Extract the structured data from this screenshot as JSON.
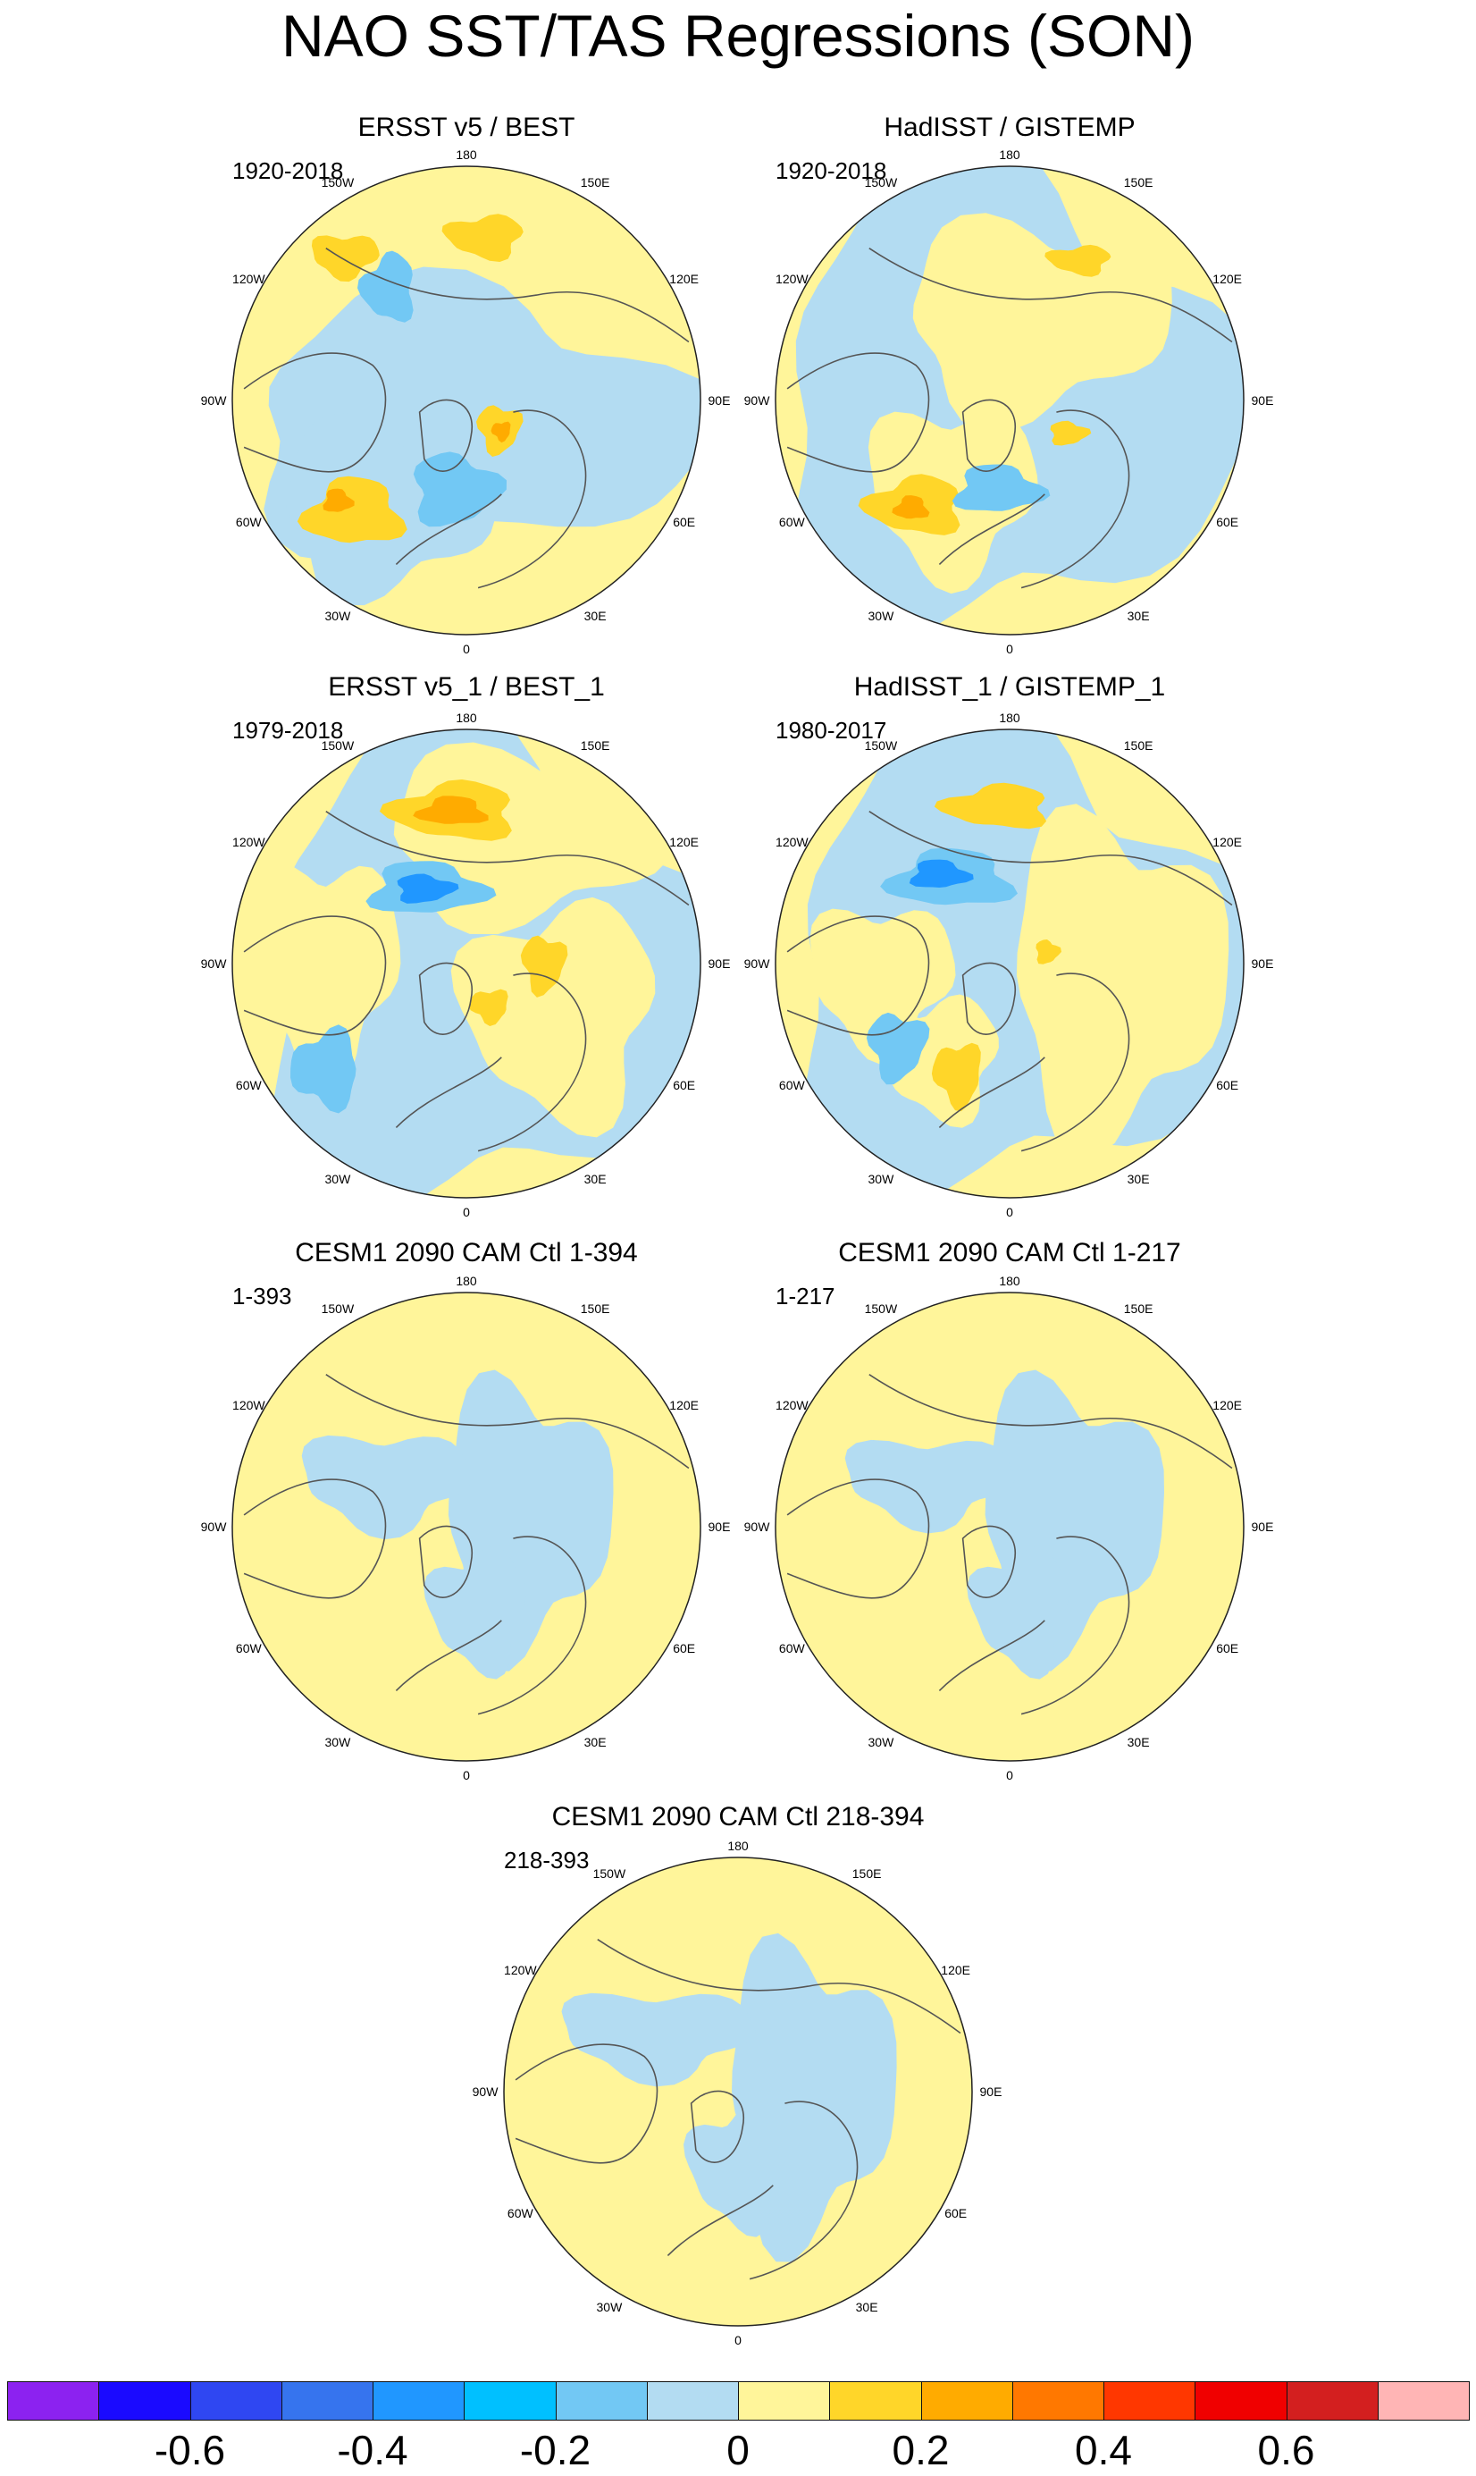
{
  "title": "NAO SST/TAS Regressions (SON)",
  "lon_labels": {
    "top": "180",
    "top_left": "150W",
    "top_right": "150E",
    "upper_left": "120W",
    "upper_right": "120E",
    "left": "90W",
    "right": "90E",
    "lower_left": "60W",
    "lower_right": "60E",
    "bottom_left": "30W",
    "bottom_right": "30E",
    "bottom": "0"
  },
  "panels": [
    {
      "id": "p1",
      "title": "ERSST v5 / BEST",
      "period": "1920-2018"
    },
    {
      "id": "p2",
      "title": "HadISST / GISTEMP",
      "period": "1920-2018"
    },
    {
      "id": "p3",
      "title": "ERSST v5_1 / BEST_1",
      "period": "1979-2018"
    },
    {
      "id": "p4",
      "title": "HadISST_1 / GISTEMP_1",
      "period": "1980-2017"
    },
    {
      "id": "p5",
      "title": "CESM1 2090 CAM Ctl 1-394",
      "period": "1-393"
    },
    {
      "id": "p6",
      "title": "CESM1 2090 CAM Ctl 1-217",
      "period": "1-217"
    },
    {
      "id": "p7",
      "title": "CESM1 2090 CAM Ctl 218-394",
      "period": "218-393"
    }
  ],
  "colorbar": {
    "colors": [
      "#8c22f0",
      "#1a0aff",
      "#2f47f2",
      "#3674ee",
      "#2097ff",
      "#00c0ff",
      "#72c8f4",
      "#b3dcf2",
      "#fff59a",
      "#ffd629",
      "#ffab00",
      "#ff7800",
      "#ff3700",
      "#f00000",
      "#d31f1f",
      "#ffb5b5"
    ],
    "labels": [
      "-0.6",
      "-0.4",
      "-0.2",
      "0",
      "0.2",
      "0.4",
      "0.6"
    ],
    "label_values": [
      -0.6,
      -0.4,
      -0.2,
      0,
      0.2,
      0.4,
      0.6
    ],
    "range": [
      -0.8,
      0.8
    ],
    "units_per_box": 0.1
  },
  "palette": {
    "neutral_pos": "#fff59a",
    "neutral_neg": "#b3dcf2",
    "light_blue": "#72c8f4",
    "blue": "#2097ff",
    "dark_blue": "#3674ee",
    "yellow_orange": "#ffd629",
    "orange": "#ffab00",
    "dark_orange": "#ff7800",
    "land_outline": "#555555"
  }
}
